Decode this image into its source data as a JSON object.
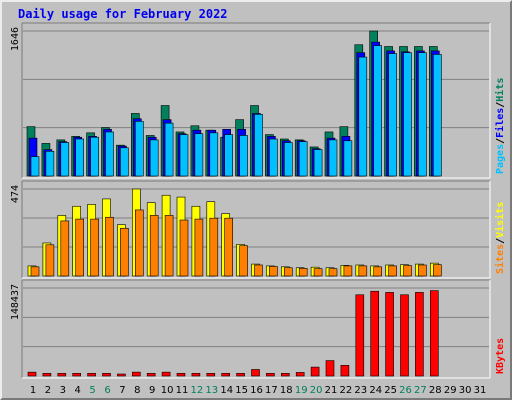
{
  "title": "Daily usage for February 2022",
  "colors": {
    "hits": "#00805c",
    "files": "#0000ff",
    "pages": "#00c0ff",
    "visits": "#ffff00",
    "sites": "#ff8000",
    "kbytes": "#ff0000",
    "weekend_label": "#00805c",
    "weekday_label": "#000000"
  },
  "chart_data": [
    {
      "type": "bar",
      "title": "Daily usage for February 2022",
      "ylabel_parts": [
        "Pages",
        "Files",
        "Hits"
      ],
      "y_max_label": "1646",
      "ylim": [
        0,
        1646
      ],
      "categories": [
        "1",
        "2",
        "3",
        "4",
        "5",
        "6",
        "7",
        "8",
        "9",
        "10",
        "11",
        "12",
        "13",
        "14",
        "15",
        "16",
        "17",
        "18",
        "19",
        "20",
        "21",
        "22",
        "23",
        "24",
        "25",
        "26",
        "27",
        "28",
        "29",
        "30",
        "31"
      ],
      "series": [
        {
          "name": "Hits",
          "values": [
            560,
            370,
            410,
            450,
            490,
            550,
            350,
            710,
            460,
            800,
            500,
            570,
            520,
            440,
            640,
            800,
            470,
            420,
            410,
            330,
            500,
            560,
            1490,
            1646,
            1470,
            1470,
            1470,
            1470,
            0,
            0,
            0
          ]
        },
        {
          "name": "Files",
          "values": [
            430,
            300,
            390,
            440,
            450,
            530,
            340,
            650,
            440,
            640,
            480,
            520,
            520,
            530,
            530,
            710,
            450,
            400,
            400,
            310,
            430,
            450,
            1400,
            1520,
            1420,
            1410,
            1420,
            1420,
            0,
            0,
            0
          ]
        },
        {
          "name": "Pages",
          "values": [
            220,
            280,
            380,
            420,
            440,
            500,
            320,
            620,
            410,
            600,
            470,
            480,
            490,
            470,
            460,
            700,
            420,
            380,
            390,
            300,
            410,
            400,
            1350,
            1480,
            1390,
            1400,
            1400,
            1380,
            0,
            0,
            0
          ]
        }
      ]
    },
    {
      "type": "bar",
      "ylabel_parts": [
        "Sites",
        "Visits"
      ],
      "y_max_label": "474",
      "ylim": [
        0,
        474
      ],
      "categories": [
        "1",
        "2",
        "3",
        "4",
        "5",
        "6",
        "7",
        "8",
        "9",
        "10",
        "11",
        "12",
        "13",
        "14",
        "15",
        "16",
        "17",
        "18",
        "19",
        "20",
        "21",
        "22",
        "23",
        "24",
        "25",
        "26",
        "27",
        "28",
        "29",
        "30",
        "31"
      ],
      "series": [
        {
          "name": "Visits",
          "values": [
            55,
            180,
            330,
            380,
            390,
            420,
            280,
            474,
            400,
            440,
            430,
            380,
            405,
            340,
            172,
            65,
            55,
            50,
            45,
            48,
            45,
            58,
            60,
            55,
            60,
            62,
            65,
            70,
            0,
            0,
            0
          ]
        },
        {
          "name": "Sites",
          "values": [
            50,
            170,
            300,
            310,
            310,
            320,
            260,
            360,
            330,
            330,
            305,
            310,
            315,
            315,
            165,
            60,
            52,
            45,
            42,
            40,
            40,
            55,
            55,
            50,
            55,
            57,
            60,
            62,
            0,
            0,
            0
          ]
        }
      ]
    },
    {
      "type": "bar",
      "ylabel_parts": [
        "KBytes"
      ],
      "y_max_label": "148437",
      "ylim": [
        0,
        148437
      ],
      "categories": [
        "1",
        "2",
        "3",
        "4",
        "5",
        "6",
        "7",
        "8",
        "9",
        "10",
        "11",
        "12",
        "13",
        "14",
        "15",
        "16",
        "17",
        "18",
        "19",
        "20",
        "21",
        "22",
        "23",
        "24",
        "25",
        "26",
        "27",
        "28",
        "29",
        "30",
        "31"
      ],
      "series": [
        {
          "name": "KBytes",
          "values": [
            6500,
            4500,
            4500,
            4500,
            4500,
            4500,
            3000,
            6500,
            4500,
            6500,
            4500,
            4500,
            4500,
            4500,
            4500,
            11000,
            4500,
            4500,
            6000,
            15000,
            26000,
            18000,
            137000,
            143000,
            141000,
            137000,
            141000,
            144000,
            0,
            0,
            0
          ]
        }
      ]
    }
  ],
  "day_labels": [
    "1",
    "2",
    "3",
    "4",
    "5",
    "6",
    "7",
    "8",
    "9",
    "10",
    "11",
    "12",
    "13",
    "14",
    "15",
    "16",
    "17",
    "18",
    "19",
    "20",
    "21",
    "22",
    "23",
    "24",
    "25",
    "26",
    "27",
    "28",
    "29",
    "30",
    "31"
  ],
  "weekend_days": [
    5,
    6,
    12,
    13,
    19,
    20,
    26,
    27
  ]
}
